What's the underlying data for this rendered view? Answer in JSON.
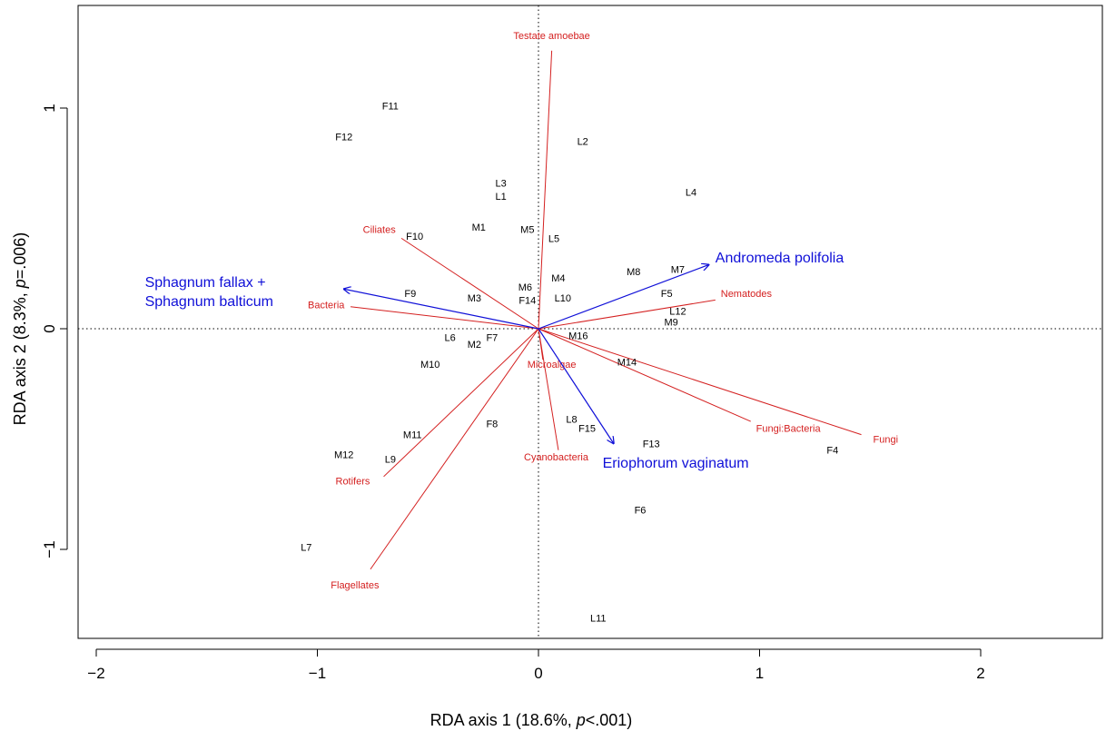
{
  "chart_data": {
    "type": "scatter",
    "title": "",
    "xlabel": "RDA axis 1 (18.6%, p<.001)",
    "xlabel_parts": {
      "prefix": "RDA axis 1 (18.6%, ",
      "italic": "p",
      "suffix": "<.001)"
    },
    "ylabel": "RDA   axis  2 (8.3%, p=.006)",
    "ylabel_parts": {
      "prefix": "RDA   axis  2 (8.3%, ",
      "italic": "p",
      "suffix": "=.006)"
    },
    "xlim": [
      -2.0,
      2.56
    ],
    "ylim": [
      -1.4,
      1.45
    ],
    "xticks": [
      -2,
      -1,
      0,
      1,
      2
    ],
    "xtick_labels": [
      "−2",
      "−1",
      "0",
      "1",
      "2"
    ],
    "yticks": [
      -1,
      0,
      1
    ],
    "ytick_labels": [
      "−1",
      "0",
      "1"
    ],
    "zero_lines": "dotted",
    "colors": {
      "sites": "#000000",
      "response": "#d42020",
      "environment": "#1010d8"
    },
    "sites": [
      {
        "label": "F11",
        "x": -0.67,
        "y": 1.01
      },
      {
        "label": "F12",
        "x": -0.88,
        "y": 0.87
      },
      {
        "label": "L2",
        "x": 0.2,
        "y": 0.85
      },
      {
        "label": "L3",
        "x": -0.17,
        "y": 0.66
      },
      {
        "label": "L1",
        "x": -0.17,
        "y": 0.6
      },
      {
        "label": "L4",
        "x": 0.69,
        "y": 0.62
      },
      {
        "label": "M1",
        "x": -0.27,
        "y": 0.46
      },
      {
        "label": "M5",
        "x": -0.05,
        "y": 0.45
      },
      {
        "label": "F10",
        "x": -0.56,
        "y": 0.42
      },
      {
        "label": "L5",
        "x": 0.07,
        "y": 0.41
      },
      {
        "label": "M8",
        "x": 0.43,
        "y": 0.26
      },
      {
        "label": "M7",
        "x": 0.63,
        "y": 0.27
      },
      {
        "label": "M4",
        "x": 0.09,
        "y": 0.23
      },
      {
        "label": "M6",
        "x": -0.06,
        "y": 0.19
      },
      {
        "label": "F9",
        "x": -0.58,
        "y": 0.16
      },
      {
        "label": "M3",
        "x": -0.29,
        "y": 0.14
      },
      {
        "label": "F14",
        "x": -0.05,
        "y": 0.13
      },
      {
        "label": "L10",
        "x": 0.11,
        "y": 0.14
      },
      {
        "label": "F5",
        "x": 0.58,
        "y": 0.16
      },
      {
        "label": "L12",
        "x": 0.63,
        "y": 0.08
      },
      {
        "label": "M9",
        "x": 0.6,
        "y": 0.03
      },
      {
        "label": "L6",
        "x": -0.4,
        "y": -0.04
      },
      {
        "label": "M2",
        "x": -0.29,
        "y": -0.07
      },
      {
        "label": "F7",
        "x": -0.21,
        "y": -0.04
      },
      {
        "label": "M16",
        "x": 0.18,
        "y": -0.03
      },
      {
        "label": "M10",
        "x": -0.49,
        "y": -0.16
      },
      {
        "label": "M14",
        "x": 0.4,
        "y": -0.15
      },
      {
        "label": "F8",
        "x": -0.21,
        "y": -0.43
      },
      {
        "label": "L8",
        "x": 0.15,
        "y": -0.41
      },
      {
        "label": "F15",
        "x": 0.22,
        "y": -0.45
      },
      {
        "label": "M11",
        "x": -0.57,
        "y": -0.48
      },
      {
        "label": "F13",
        "x": 0.51,
        "y": -0.52
      },
      {
        "label": "F4",
        "x": 1.33,
        "y": -0.55
      },
      {
        "label": "M12",
        "x": -0.88,
        "y": -0.57
      },
      {
        "label": "L9",
        "x": -0.67,
        "y": -0.59
      },
      {
        "label": "F6",
        "x": 0.46,
        "y": -0.82
      },
      {
        "label": "L7",
        "x": -1.05,
        "y": -0.99
      },
      {
        "label": "L11",
        "x": 0.27,
        "y": -1.31
      }
    ],
    "response_vectors": [
      {
        "label": "Testate amoebae",
        "x": 0.06,
        "y": 1.26,
        "label_x": 0.06,
        "label_y": 1.33
      },
      {
        "label": "Ciliates",
        "x": -0.62,
        "y": 0.41,
        "label_x": -0.72,
        "label_y": 0.45
      },
      {
        "label": "Bacteria",
        "x": -0.85,
        "y": 0.1,
        "label_x": -0.96,
        "label_y": 0.11
      },
      {
        "label": "Nematodes",
        "x": 0.8,
        "y": 0.13,
        "label_x": 0.94,
        "label_y": 0.16
      },
      {
        "label": "Microalgae",
        "x": 0.02,
        "y": -0.14,
        "label_x": 0.06,
        "label_y": -0.16
      },
      {
        "label": "Cyanobacteria",
        "x": 0.09,
        "y": -0.55,
        "label_x": 0.08,
        "label_y": -0.58
      },
      {
        "label": "Fungi:Bacteria",
        "x": 0.96,
        "y": -0.42,
        "label_x": 1.13,
        "label_y": -0.45
      },
      {
        "label": "Fungi",
        "x": 1.46,
        "y": -0.48,
        "label_x": 1.57,
        "label_y": -0.5
      },
      {
        "label": "Rotifers",
        "x": -0.7,
        "y": -0.67,
        "label_x": -0.84,
        "label_y": -0.69
      },
      {
        "label": "Flagellates",
        "x": -0.76,
        "y": -1.09,
        "label_x": -0.83,
        "label_y": -1.16
      }
    ],
    "environment_vectors": [
      {
        "label": "Sphagnum fallax +\nSphagnum balticum",
        "lines": [
          "Sphagnum fallax +",
          "Sphagnum balticum"
        ],
        "x": -0.88,
        "y": 0.18,
        "label_x": -1.78,
        "label_y": 0.21,
        "anchor": "start"
      },
      {
        "label": "Andromeda polifolia",
        "x": 0.77,
        "y": 0.29,
        "label_x": 0.8,
        "label_y": 0.32,
        "anchor": "start"
      },
      {
        "label": "Eriophorum vaginatum",
        "x": 0.34,
        "y": -0.52,
        "label_x": 0.29,
        "label_y": -0.61,
        "anchor": "start"
      }
    ]
  }
}
